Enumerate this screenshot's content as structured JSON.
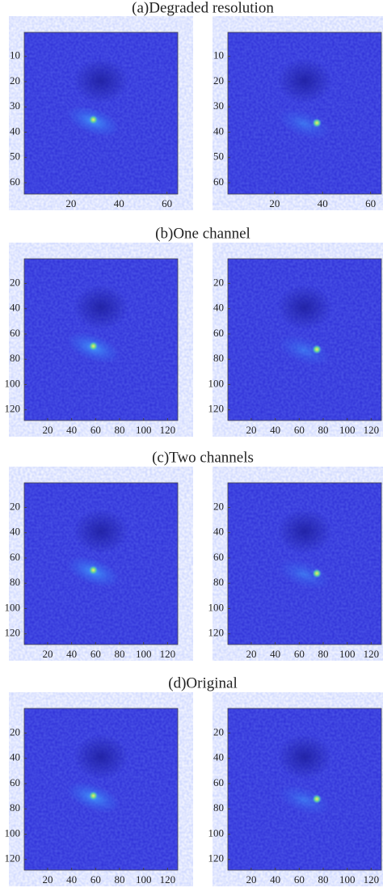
{
  "chart_data": [
    {
      "type": "image",
      "title": "(a)Degraded resolution",
      "panels": [
        {
          "xlim": [
            0.5,
            64.5
          ],
          "ylim": [
            0.5,
            64.5
          ],
          "xticks": [
            20,
            40,
            60
          ],
          "yticks": [
            10,
            20,
            30,
            40,
            50,
            60
          ]
        },
        {
          "xlim": [
            0.5,
            64.5
          ],
          "ylim": [
            0.5,
            64.5
          ],
          "xticks": [
            20,
            40,
            60
          ],
          "yticks": [
            10,
            20,
            30,
            40,
            50,
            60
          ]
        }
      ]
    },
    {
      "type": "image",
      "title": "(b)One channel",
      "panels": [
        {
          "xlim": [
            0.5,
            128.5
          ],
          "ylim": [
            0.5,
            128.5
          ],
          "xticks": [
            20,
            40,
            60,
            80,
            100,
            120
          ],
          "yticks": [
            20,
            40,
            60,
            80,
            100,
            120
          ]
        },
        {
          "xlim": [
            0.5,
            128.5
          ],
          "ylim": [
            0.5,
            128.5
          ],
          "xticks": [
            20,
            40,
            60,
            80,
            100,
            120
          ],
          "yticks": [
            20,
            40,
            60,
            80,
            100,
            120
          ]
        }
      ]
    },
    {
      "type": "image",
      "title": "(c)Two channels",
      "panels": [
        {
          "xlim": [
            0.5,
            128.5
          ],
          "ylim": [
            0.5,
            128.5
          ],
          "xticks": [
            20,
            40,
            60,
            80,
            100,
            120
          ],
          "yticks": [
            20,
            40,
            60,
            80,
            100,
            120
          ]
        },
        {
          "xlim": [
            0.5,
            128.5
          ],
          "ylim": [
            0.5,
            128.5
          ],
          "xticks": [
            20,
            40,
            60,
            80,
            100,
            120
          ],
          "yticks": [
            20,
            40,
            60,
            80,
            100,
            120
          ]
        }
      ]
    },
    {
      "type": "image",
      "title": "(d)Original",
      "panels": [
        {
          "xlim": [
            0.5,
            128.5
          ],
          "ylim": [
            0.5,
            128.5
          ],
          "xticks": [
            20,
            40,
            60,
            80,
            100,
            120
          ],
          "yticks": [
            20,
            40,
            60,
            80,
            100,
            120
          ]
        },
        {
          "xlim": [
            0.5,
            128.5
          ],
          "ylim": [
            0.5,
            128.5
          ],
          "xticks": [
            20,
            40,
            60,
            80,
            100,
            120
          ],
          "yticks": [
            20,
            40,
            60,
            80,
            100,
            120
          ]
        }
      ]
    }
  ]
}
